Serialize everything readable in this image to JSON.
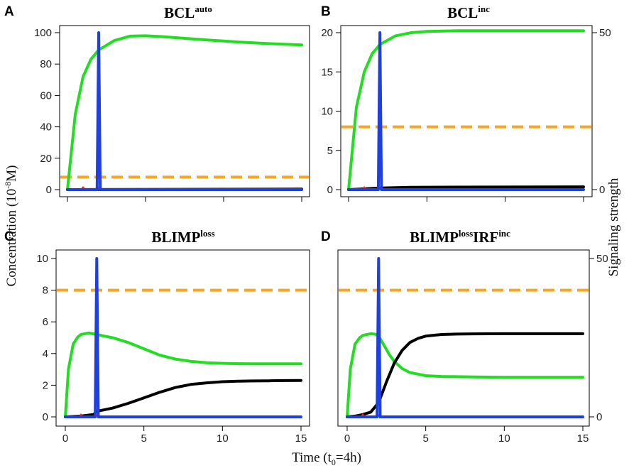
{
  "figure": {
    "ylabel_main": "Concentration (10",
    "ylabel_exp": "-8",
    "ylabel_tail": "M)",
    "xlabel": "Time (t",
    "xlabel_sub": "0",
    "xlabel_tail": "=4h)",
    "y2label": "Signaling strength"
  },
  "colors": {
    "green": "#22dd22",
    "blue": "#1f3fe0",
    "black": "#000000",
    "orange": "#f5a623",
    "red": "#dd3322"
  },
  "chart_data": [
    {
      "type": "line",
      "panel_label": "A",
      "title": "BCL",
      "title_sup": "auto",
      "xlim": [
        0,
        15
      ],
      "ylim": [
        0,
        100
      ],
      "x_ticks": [
        0,
        5,
        10,
        15
      ],
      "x_tick_labels_shown": false,
      "y_ticks": [
        0,
        20,
        40,
        60,
        80,
        100
      ],
      "y_tick_labels": [
        "0",
        "20",
        "40",
        "60",
        "80",
        "100"
      ],
      "threshold": 8,
      "series": [
        {
          "name": "green",
          "color_key": "green",
          "x": [
            0,
            0.5,
            1,
            1.5,
            2,
            3,
            4,
            5,
            6,
            7,
            8,
            9,
            10,
            11,
            12,
            13,
            14,
            15
          ],
          "values": [
            0,
            48,
            72,
            83,
            89,
            95,
            97.8,
            98,
            97.5,
            96.8,
            96,
            95.3,
            94.7,
            94,
            93.5,
            93,
            92.6,
            92.2
          ]
        },
        {
          "name": "black",
          "color_key": "black",
          "x": [
            0,
            15
          ],
          "values": [
            0,
            0.3
          ]
        },
        {
          "name": "blue",
          "color_key": "blue",
          "x": [
            0,
            1.9,
            2.0,
            2.1,
            15
          ],
          "values": [
            0,
            0,
            100,
            0,
            0
          ]
        },
        {
          "name": "red",
          "color_key": "red",
          "x": [
            0,
            0.9,
            1.0,
            1.1,
            1.95,
            2.0,
            2.05,
            15
          ],
          "values": [
            0,
            0,
            1.5,
            0,
            0,
            1.0,
            0,
            0
          ]
        }
      ],
      "right_axis": null
    },
    {
      "type": "line",
      "panel_label": "B",
      "title": "BCL",
      "title_sup": "inc",
      "xlim": [
        0,
        15
      ],
      "ylim": [
        0,
        20
      ],
      "x_ticks": [
        0,
        5,
        10,
        15
      ],
      "x_tick_labels_shown": false,
      "y_ticks": [
        0,
        5,
        10,
        15,
        20
      ],
      "y_tick_labels": [
        "0",
        "5",
        "10",
        "15",
        "20"
      ],
      "threshold": 8,
      "series": [
        {
          "name": "green",
          "color_key": "green",
          "x": [
            0,
            0.5,
            1,
            1.5,
            2,
            3,
            4,
            5,
            6,
            7,
            8,
            10,
            12,
            15
          ],
          "values": [
            0,
            10.5,
            15,
            17.3,
            18.5,
            19.6,
            20,
            20.15,
            20.2,
            20.25,
            20.25,
            20.25,
            20.25,
            20.25
          ]
        },
        {
          "name": "black",
          "color_key": "black",
          "x": [
            0,
            1,
            2,
            4,
            15
          ],
          "values": [
            0,
            0.1,
            0.2,
            0.3,
            0.35
          ]
        },
        {
          "name": "blue",
          "color_key": "blue",
          "x": [
            0,
            1.9,
            2.0,
            2.1,
            15
          ],
          "values": [
            0,
            0,
            20,
            0,
            0
          ]
        },
        {
          "name": "red",
          "color_key": "red",
          "x": [
            0,
            0.9,
            1.0,
            1.1,
            1.95,
            2.0,
            2.05,
            15
          ],
          "values": [
            0,
            0,
            0.3,
            0,
            0,
            0.2,
            0,
            0
          ]
        }
      ],
      "right_axis": {
        "ylim": [
          0,
          50
        ],
        "ticks": [
          0,
          50
        ],
        "tick_labels": [
          "0",
          "50"
        ]
      }
    },
    {
      "type": "line",
      "panel_label": "C",
      "title": "BLIMP",
      "title_sup": "loss",
      "xlim": [
        0,
        15
      ],
      "ylim": [
        0,
        10
      ],
      "x_ticks": [
        0,
        5,
        10,
        15
      ],
      "x_tick_labels_shown": true,
      "x_tick_labels": [
        "0",
        "5",
        "10",
        "15"
      ],
      "y_ticks": [
        0,
        2,
        4,
        6,
        8,
        10
      ],
      "y_tick_labels": [
        "0",
        "2",
        "4",
        "6",
        "8",
        "10"
      ],
      "threshold": 8,
      "series": [
        {
          "name": "green",
          "color_key": "green",
          "x": [
            0,
            0.2,
            0.5,
            0.8,
            1,
            1.5,
            2,
            2.5,
            3,
            4,
            5,
            6,
            7,
            8,
            9,
            10,
            11,
            12,
            13,
            14,
            15
          ],
          "values": [
            0,
            3.0,
            4.6,
            5.05,
            5.2,
            5.3,
            5.2,
            5.1,
            5.0,
            4.7,
            4.3,
            3.9,
            3.65,
            3.5,
            3.42,
            3.38,
            3.36,
            3.35,
            3.35,
            3.35,
            3.35
          ]
        },
        {
          "name": "black",
          "color_key": "black",
          "x": [
            0,
            1,
            1.8,
            2,
            3,
            4,
            5,
            6,
            7,
            8,
            9,
            10,
            11,
            12,
            13,
            14,
            15
          ],
          "values": [
            0,
            0.05,
            0.15,
            0.35,
            0.55,
            0.85,
            1.2,
            1.55,
            1.85,
            2.05,
            2.15,
            2.22,
            2.25,
            2.27,
            2.28,
            2.29,
            2.3
          ]
        },
        {
          "name": "blue",
          "color_key": "blue",
          "x": [
            0,
            1.9,
            2.0,
            2.1,
            15
          ],
          "values": [
            0,
            0,
            10,
            0,
            0
          ]
        },
        {
          "name": "red",
          "color_key": "red",
          "x": [
            0,
            0.9,
            1.0,
            1.1,
            1.95,
            2.0,
            2.05,
            15
          ],
          "values": [
            0,
            0,
            0.15,
            0,
            0,
            0.1,
            0,
            0
          ]
        }
      ],
      "right_axis": null
    },
    {
      "type": "line",
      "panel_label": "D",
      "title": "BLIMP",
      "title_sup": "loss",
      "title2": "IRF",
      "title2_sup": "inc",
      "xlim": [
        0,
        15
      ],
      "ylim": [
        0,
        10
      ],
      "x_ticks": [
        0,
        5,
        10,
        15
      ],
      "x_tick_labels_shown": true,
      "x_tick_labels": [
        "0",
        "5",
        "10",
        "15"
      ],
      "y_ticks": [],
      "y_tick_labels": [],
      "threshold": 8,
      "series": [
        {
          "name": "green",
          "color_key": "green",
          "x": [
            0,
            0.2,
            0.5,
            0.8,
            1,
            1.5,
            1.8,
            2,
            2.3,
            2.7,
            3,
            3.5,
            4,
            5,
            6,
            8,
            10,
            12,
            15
          ],
          "values": [
            0,
            3.0,
            4.6,
            5.0,
            5.15,
            5.25,
            5.22,
            5.1,
            4.6,
            3.9,
            3.5,
            3.05,
            2.8,
            2.6,
            2.55,
            2.52,
            2.5,
            2.5,
            2.5
          ]
        },
        {
          "name": "black",
          "color_key": "black",
          "x": [
            0,
            0.5,
            1,
            1.5,
            2,
            2.5,
            3,
            3.5,
            4,
            4.5,
            5,
            6,
            7,
            8,
            10,
            12,
            15
          ],
          "values": [
            0,
            0.05,
            0.15,
            0.3,
            0.9,
            2.2,
            3.4,
            4.2,
            4.7,
            4.95,
            5.1,
            5.2,
            5.23,
            5.24,
            5.25,
            5.25,
            5.25
          ]
        },
        {
          "name": "blue",
          "color_key": "blue",
          "x": [
            0,
            1.9,
            2.0,
            2.1,
            15
          ],
          "values": [
            0,
            0,
            10,
            0,
            0
          ]
        },
        {
          "name": "red",
          "color_key": "red",
          "x": [
            0,
            0.9,
            1.0,
            1.1,
            1.95,
            2.0,
            2.05,
            15
          ],
          "values": [
            0,
            0,
            0.15,
            0,
            0,
            0.1,
            0,
            0
          ]
        }
      ],
      "right_axis": {
        "ylim": [
          0,
          50
        ],
        "ticks": [
          0,
          50
        ],
        "tick_labels": [
          "0",
          "50"
        ]
      }
    }
  ]
}
